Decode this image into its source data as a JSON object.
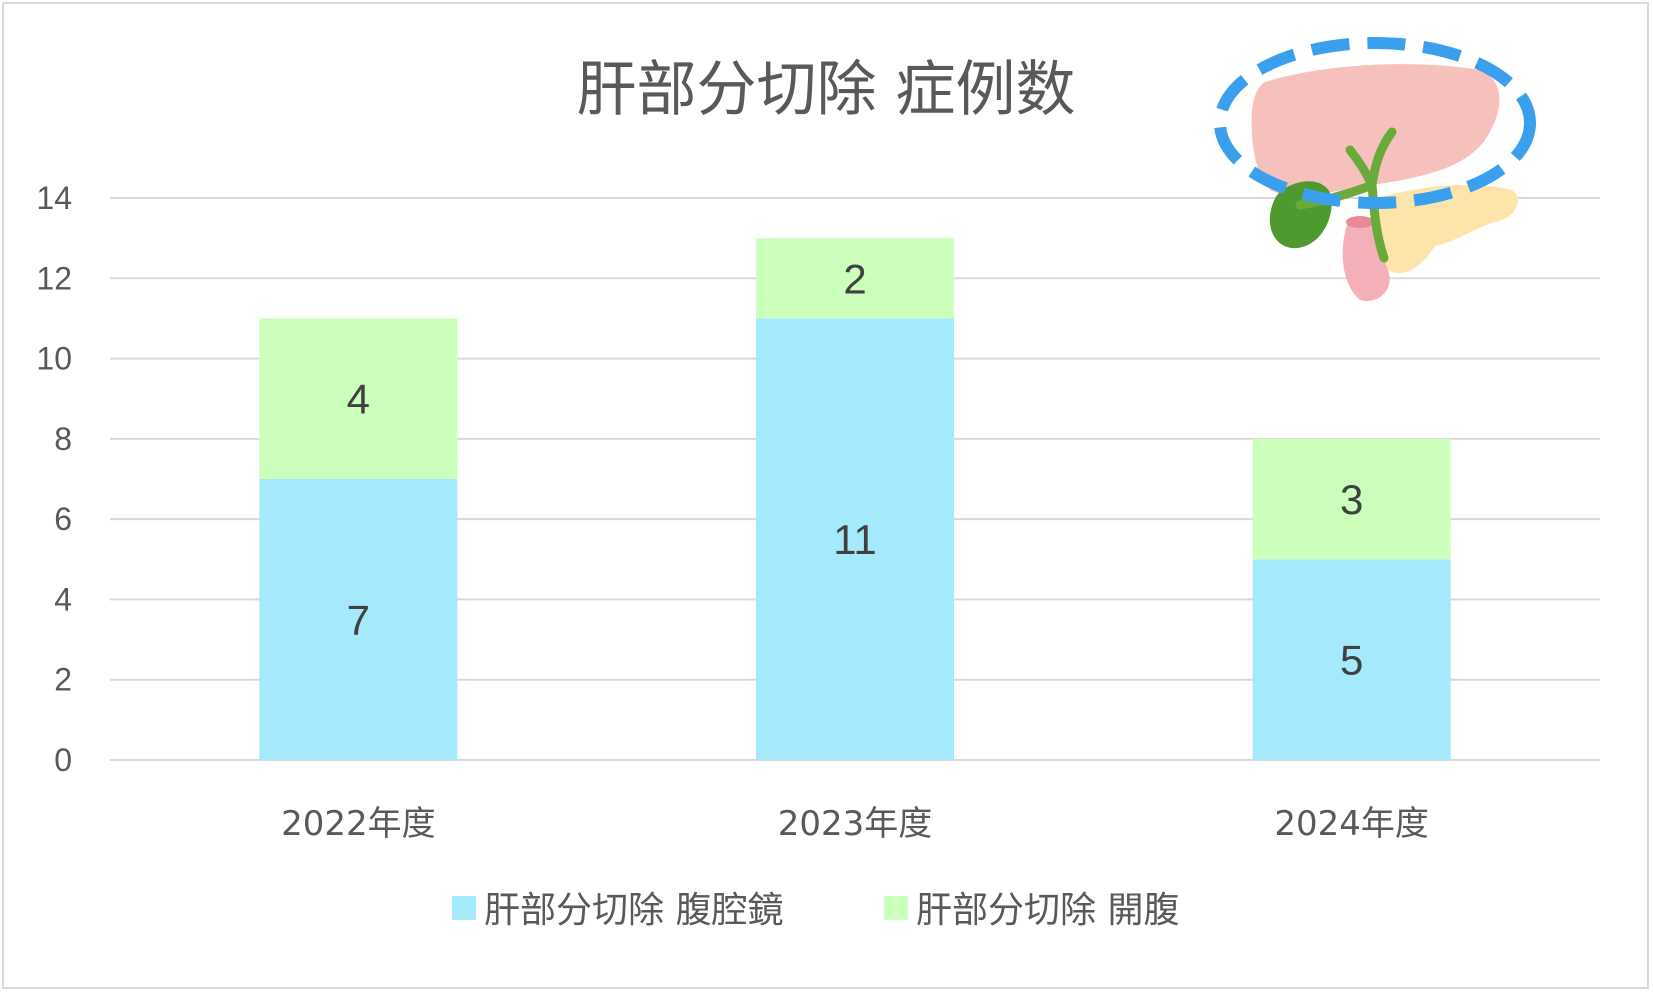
{
  "chart_data": {
    "type": "bar",
    "stacked": true,
    "title": "肝部分切除 症例数",
    "categories": [
      "2022年度",
      "2023年度",
      "2024年度"
    ],
    "series": [
      {
        "name": "肝部分切除 腹腔鏡",
        "values": [
          7,
          11,
          5
        ],
        "color": "#a5eafc"
      },
      {
        "name": "肝部分切除 開腹",
        "values": [
          4,
          2,
          3
        ],
        "color": "#ccffbb"
      }
    ],
    "yticks": [
      "0",
      "2",
      "4",
      "6",
      "8",
      "10",
      "12",
      "14"
    ],
    "ylim": [
      0,
      14
    ],
    "grid": true,
    "legend_position": "bottom",
    "illustration": "liver-gallbladder-pancreas-illustration"
  }
}
